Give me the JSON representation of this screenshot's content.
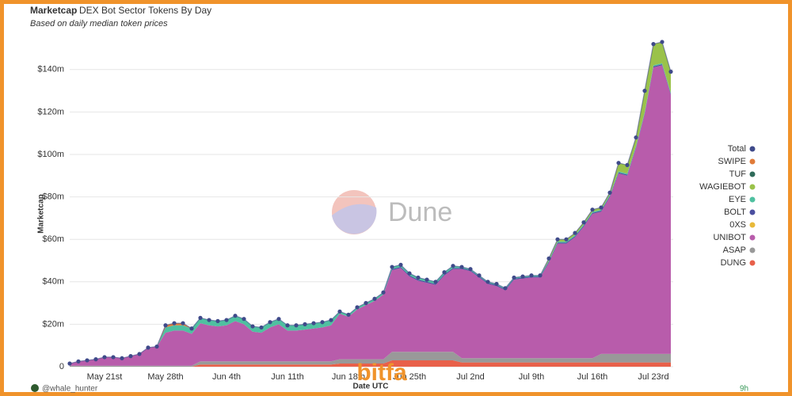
{
  "chart_data": {
    "type": "stacked_area",
    "title": "Marketcap",
    "subtitle": "DEX Bot Sector Tokens By Day",
    "note": "Based on daily median token prices",
    "y_label": "Marketcap",
    "x_label": "Date UTC",
    "watermark": "Dune",
    "author": "@whale_hunter",
    "age": "9h",
    "logo": "bitfa",
    "categories": [
      null,
      null,
      null,
      null,
      "May 21st",
      null,
      null,
      null,
      null,
      null,
      null,
      "May 28th",
      null,
      null,
      null,
      null,
      null,
      null,
      "Jun 4th",
      null,
      null,
      null,
      null,
      null,
      null,
      "Jun 11th",
      null,
      null,
      null,
      null,
      null,
      null,
      "Jun 18th",
      null,
      null,
      null,
      null,
      null,
      null,
      "Jun 25th",
      null,
      null,
      null,
      null,
      null,
      null,
      "Jul 2nd",
      null,
      null,
      null,
      null,
      null,
      null,
      "Jul 9th",
      null,
      null,
      null,
      null,
      null,
      null,
      "Jul 16th",
      null,
      null,
      null,
      null,
      null,
      null,
      "Jul 23rd",
      null,
      null
    ],
    "ylim": [
      0,
      150
    ],
    "yticks": [
      0,
      {
        "value": 20,
        "label": "$20m"
      },
      {
        "value": 40,
        "label": "$40m"
      },
      {
        "value": 60,
        "label": "$60m"
      },
      {
        "value": 80,
        "label": "$80m"
      },
      {
        "value": 100,
        "label": "$100m"
      },
      {
        "value": 120,
        "label": "$120m"
      },
      {
        "value": 140,
        "label": "$140m"
      }
    ],
    "grid": true,
    "legend": "right",
    "series": [
      {
        "name": "DUNG",
        "color": "#e8604a",
        "values": [
          0,
          0,
          0,
          0,
          0,
          0,
          0,
          0,
          0,
          0,
          0,
          0,
          0,
          0,
          0,
          1,
          1,
          1,
          1,
          1,
          1,
          1,
          1,
          1,
          1,
          1,
          1,
          1,
          1,
          1,
          1,
          1.5,
          1.5,
          1.5,
          1.5,
          1.5,
          1.5,
          3,
          3,
          3,
          3,
          3,
          3,
          3,
          3,
          2,
          2,
          2,
          2,
          2,
          2,
          2,
          2,
          2,
          2,
          2,
          2,
          2,
          2,
          2,
          2,
          2,
          2,
          2,
          2,
          2,
          2,
          2,
          2,
          2
        ]
      },
      {
        "name": "ASAP",
        "color": "#999999",
        "values": [
          0.5,
          0.5,
          0.5,
          0.5,
          0.5,
          0.5,
          0.5,
          0.5,
          0.5,
          0.5,
          0.5,
          0.5,
          0.5,
          0.5,
          0.5,
          1.5,
          1.5,
          1.5,
          1.5,
          1.5,
          1.5,
          1.5,
          1.5,
          1.5,
          1.5,
          1.5,
          1.5,
          1.5,
          1.5,
          1.5,
          1.5,
          2,
          2,
          2,
          2,
          2,
          2,
          4,
          4,
          4,
          4,
          4,
          4,
          4,
          4,
          2,
          2,
          2,
          2,
          2,
          2,
          2,
          2,
          2,
          2,
          2,
          2,
          2,
          2,
          2,
          2,
          4,
          4,
          4,
          4,
          4,
          4,
          4,
          4,
          4
        ]
      },
      {
        "name": "UNIBOT",
        "color": "#b85cab",
        "values": [
          1,
          2,
          2.5,
          3,
          4,
          4,
          3.5,
          4.5,
          5.5,
          8.5,
          9,
          15.5,
          16.5,
          16.5,
          15,
          18,
          17,
          16.5,
          17,
          19,
          17.5,
          14,
          13.5,
          16,
          17.5,
          14.5,
          14.5,
          15,
          15.5,
          16,
          17,
          21.5,
          20,
          23.5,
          25.5,
          27.5,
          30.5,
          38.5,
          39.5,
          35.5,
          33.5,
          32.5,
          31.5,
          36,
          39,
          42,
          41,
          38,
          35,
          34,
          32,
          37,
          37.5,
          38,
          38,
          45,
          54,
          54,
          57,
          62,
          68,
          67,
          74,
          85,
          84,
          97,
          113,
          135,
          136,
          122
        ]
      },
      {
        "name": "0XS",
        "color": "#e8b93a",
        "values": [
          0,
          0,
          0,
          0,
          0,
          0,
          0,
          0,
          0,
          0,
          0,
          0,
          0,
          0,
          0,
          0,
          0,
          0,
          0,
          0,
          0,
          0,
          0,
          0,
          0,
          0,
          0,
          0,
          0,
          0,
          0,
          0,
          0,
          0,
          0,
          0,
          0,
          0,
          0,
          0,
          0,
          0,
          0,
          0,
          0,
          0,
          0,
          0,
          0,
          0,
          0,
          0,
          0,
          0,
          0,
          0,
          0,
          0,
          0,
          0,
          0,
          0,
          0,
          0,
          0,
          0,
          0,
          0,
          0,
          0
        ]
      },
      {
        "name": "BOLT",
        "color": "#4b4fa0",
        "values": [
          0,
          0,
          0,
          0,
          0,
          0,
          0,
          0,
          0,
          0,
          0,
          0,
          0,
          0,
          0,
          0,
          0,
          0,
          0,
          0,
          0,
          0,
          0,
          0,
          0,
          0,
          0,
          0,
          0,
          0,
          0,
          0,
          0,
          0,
          0,
          0,
          0,
          0.5,
          0.5,
          0.5,
          0.5,
          0.5,
          0.5,
          0.5,
          0.5,
          0.5,
          0.5,
          0.5,
          0.5,
          0.5,
          0.5,
          0.5,
          0.5,
          0.5,
          0.5,
          0.5,
          0.5,
          0.5,
          0.5,
          0.5,
          0.5,
          0.5,
          0.5,
          0.5,
          0.5,
          0.5,
          0.5,
          0.5,
          0.5,
          0.5
        ]
      },
      {
        "name": "EYE",
        "color": "#4fc0a0",
        "values": [
          0,
          0,
          0,
          0,
          0,
          0,
          0,
          0,
          0,
          0,
          0,
          2.5,
          2.5,
          2.5,
          2.5,
          2.5,
          2.5,
          2.5,
          2.5,
          2.5,
          2.5,
          2.5,
          2.5,
          2.5,
          2.5,
          2.5,
          2.5,
          2.5,
          2.5,
          2.5,
          2.5,
          1,
          1,
          1,
          1,
          1,
          1,
          1,
          1,
          1,
          1,
          1,
          1,
          1,
          1,
          0.5,
          0.5,
          0.5,
          0.5,
          0.5,
          0.5,
          0.5,
          0.5,
          0.5,
          0.5,
          0.5,
          0.5,
          0.5,
          0.5,
          0.5,
          0.5,
          0.5,
          0.5,
          0.5,
          0.5,
          0.5,
          0.5,
          0.5,
          0.5,
          0.5
        ]
      },
      {
        "name": "WAGIEBOT",
        "color": "#9ac24a",
        "values": [
          0,
          0,
          0,
          0,
          0,
          0,
          0,
          0,
          0,
          0,
          0,
          0,
          0,
          0,
          0,
          0,
          0,
          0,
          0,
          0,
          0,
          0,
          0,
          0,
          0,
          0,
          0,
          0,
          0,
          0,
          0,
          0,
          0,
          0,
          0,
          0,
          0,
          0,
          0,
          0,
          0,
          0,
          0,
          0,
          0,
          0,
          0,
          0,
          0,
          0,
          0,
          0,
          0,
          0,
          0,
          1,
          1,
          1,
          1,
          1,
          1,
          1,
          1,
          4,
          4,
          4,
          10,
          10,
          10,
          10
        ]
      },
      {
        "name": "TUF",
        "color": "#2f6b5a",
        "values": [
          0,
          0,
          0,
          0,
          0,
          0,
          0,
          0,
          0,
          0,
          0,
          0,
          0,
          0,
          0,
          0,
          0,
          0,
          0,
          0,
          0,
          0,
          0,
          0,
          0,
          0,
          0,
          0,
          0,
          0,
          0,
          0,
          0,
          0,
          0,
          0,
          0,
          0,
          0,
          0,
          0,
          0,
          0,
          0,
          0,
          0,
          0,
          0,
          0,
          0,
          0,
          0,
          0,
          0,
          0,
          0,
          0,
          0,
          0,
          0,
          0,
          0,
          0,
          0,
          0,
          0,
          0,
          0,
          0,
          0
        ]
      },
      {
        "name": "SWIPE",
        "color": "#e07b39",
        "values": [
          0,
          0,
          0,
          0,
          0,
          0,
          0,
          0,
          0,
          0,
          0,
          1,
          1,
          1,
          0,
          0,
          0,
          0,
          0,
          0,
          0,
          0,
          0,
          0,
          0,
          0,
          0,
          0,
          0,
          0,
          0,
          0,
          0,
          0,
          0,
          0,
          0,
          0,
          0,
          0,
          0,
          0,
          0,
          0,
          0,
          0,
          0,
          0,
          0,
          0,
          0,
          0,
          0,
          0,
          0,
          0,
          0,
          0,
          0,
          0,
          0,
          0,
          0,
          0,
          0,
          0,
          0,
          0,
          0,
          0
        ]
      }
    ],
    "total": {
      "name": "Total",
      "color": "#3f4a8a",
      "values": [
        1.5,
        2.5,
        3,
        3.5,
        4.5,
        4.5,
        4,
        5,
        6,
        9,
        9.5,
        19.5,
        20.5,
        20.5,
        18,
        23,
        22,
        21.5,
        22,
        24,
        22.5,
        19,
        18.5,
        21,
        22.5,
        19.5,
        19.5,
        20,
        20.5,
        21,
        22,
        26,
        24.5,
        28,
        30,
        32,
        35,
        47,
        48,
        44,
        42,
        41,
        40,
        44.5,
        47.5,
        47,
        46,
        43,
        40,
        39,
        37,
        42,
        42.5,
        43,
        43,
        51,
        60,
        60,
        63,
        68,
        74,
        75,
        82,
        96,
        95,
        108,
        130,
        152,
        153,
        139
      ]
    }
  }
}
